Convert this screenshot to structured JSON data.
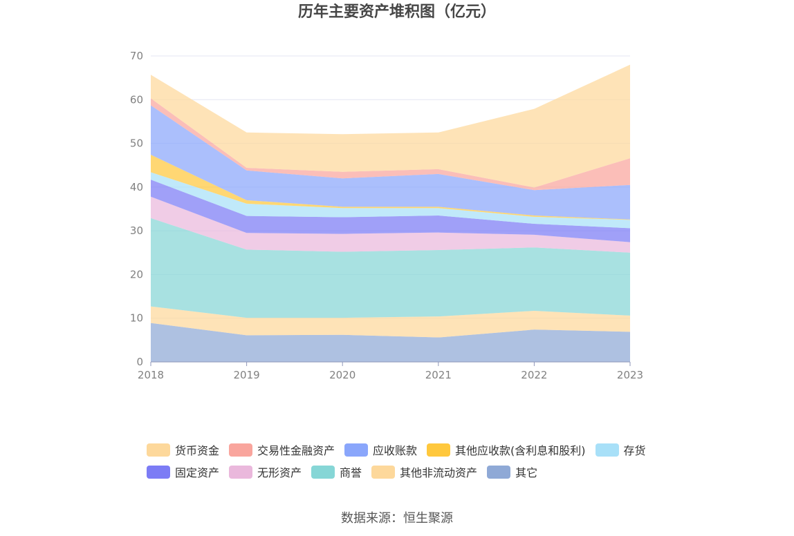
{
  "chart_data": {
    "type": "area",
    "stacked": true,
    "title": "历年主要资产堆积图（亿元）",
    "x": [
      "2018",
      "2019",
      "2020",
      "2021",
      "2022",
      "2023"
    ],
    "ylim": [
      0,
      70
    ],
    "yticks": [
      0,
      10,
      20,
      30,
      40,
      50,
      60,
      70
    ],
    "grid": true,
    "legend_position": "bottom",
    "series": [
      {
        "name": "其它",
        "color": "#8fa9d6",
        "values": [
          8.9,
          6.1,
          6.2,
          5.6,
          7.4,
          6.9
        ]
      },
      {
        "name": "其他非流动资产",
        "color": "#fdd89b",
        "values": [
          3.8,
          4.0,
          3.9,
          4.8,
          4.3,
          3.7
        ]
      },
      {
        "name": "商誉",
        "color": "#86d6d6",
        "values": [
          20.2,
          15.6,
          15.1,
          15.2,
          14.5,
          14.4
        ]
      },
      {
        "name": "无形资产",
        "color": "#eab8dc",
        "values": [
          4.9,
          3.8,
          4.1,
          4.0,
          2.9,
          2.4
        ]
      },
      {
        "name": "固定资产",
        "color": "#7c7cf5",
        "values": [
          3.9,
          3.9,
          3.8,
          3.9,
          2.5,
          3.2
        ]
      },
      {
        "name": "存货",
        "color": "#a8e0f8",
        "values": [
          1.7,
          2.8,
          2.1,
          1.7,
          1.6,
          1.9
        ]
      },
      {
        "name": "其他应收款(含利息和股利)",
        "color": "#ffc83d",
        "values": [
          4.0,
          0.8,
          0.3,
          0.3,
          0.3,
          0.1
        ]
      },
      {
        "name": "应收账款",
        "color": "#8aa6fb",
        "values": [
          11.3,
          6.8,
          6.5,
          7.5,
          5.8,
          7.9
        ]
      },
      {
        "name": "交易性金融资产",
        "color": "#f9a59d",
        "values": [
          1.6,
          0.6,
          1.5,
          1.1,
          0.6,
          6.1
        ]
      },
      {
        "name": "货币资金",
        "color": "#fdd89b",
        "values": [
          5.4,
          8.1,
          8.6,
          8.4,
          18.0,
          21.4
        ]
      }
    ]
  },
  "legend": {
    "row1": [
      {
        "name": "货币资金",
        "color": "#fdd89b"
      },
      {
        "name": "交易性金融资产",
        "color": "#f9a59d"
      },
      {
        "name": "应收账款",
        "color": "#8aa6fb"
      },
      {
        "name": "其他应收款(含利息和股利)",
        "color": "#ffc83d"
      },
      {
        "name": "存货",
        "color": "#a8e0f8"
      }
    ],
    "row2": [
      {
        "name": "固定资产",
        "color": "#7c7cf5"
      },
      {
        "name": "无形资产",
        "color": "#eab8dc"
      },
      {
        "name": "商誉",
        "color": "#86d6d6"
      },
      {
        "name": "其他非流动资产",
        "color": "#fdd89b"
      },
      {
        "name": "其它",
        "color": "#8fa9d6"
      }
    ]
  },
  "source": "数据来源：恒生聚源"
}
